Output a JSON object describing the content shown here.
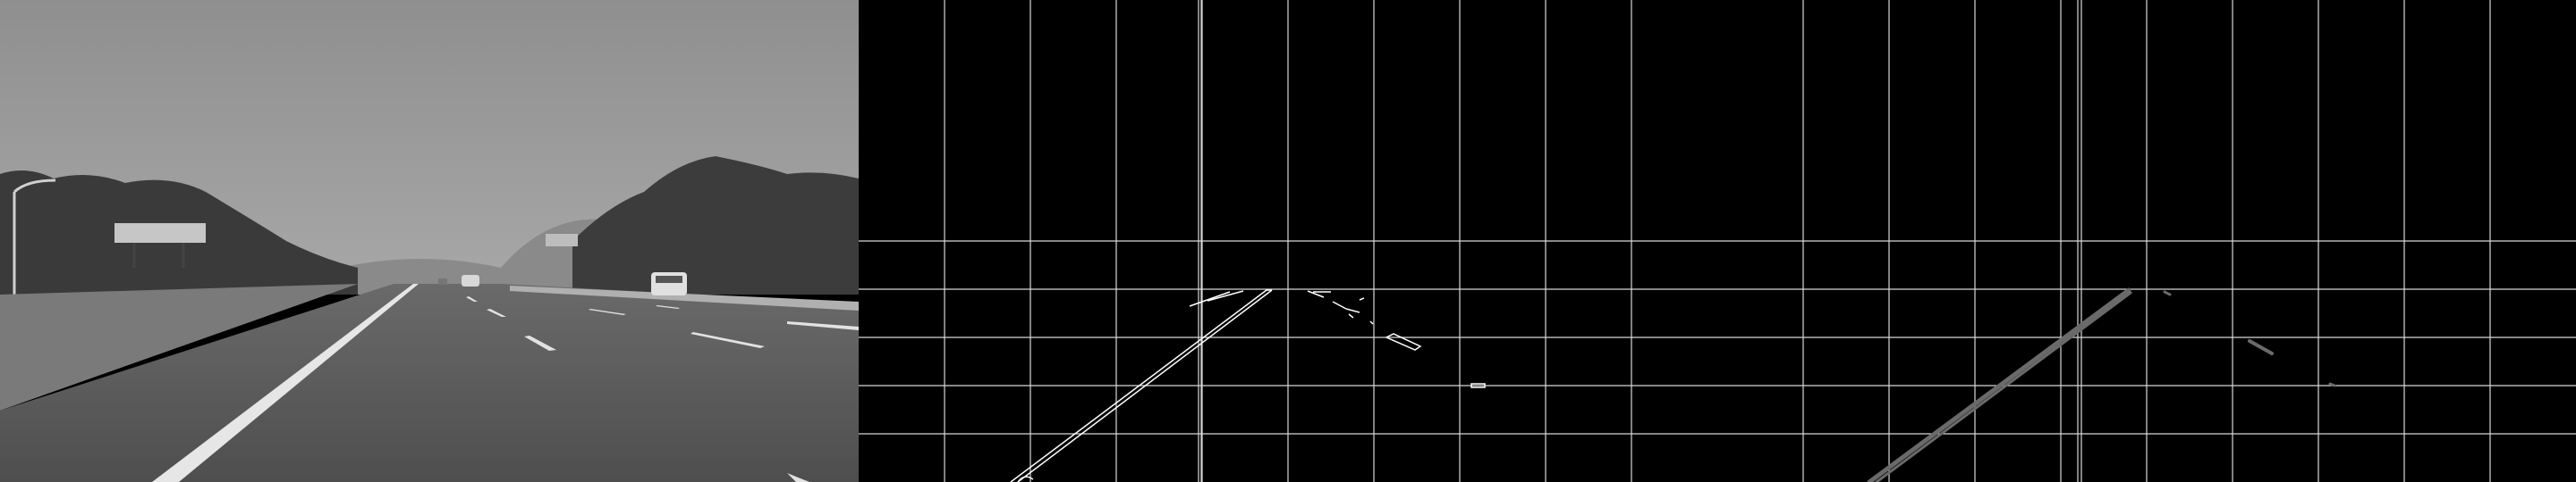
{
  "panels": [
    {
      "id": "grayscale-road",
      "kind": "image"
    },
    {
      "id": "canny-edges-grid",
      "kind": "image"
    },
    {
      "id": "hough-lines-grid",
      "kind": "image"
    }
  ],
  "colors": {
    "background": "#000000",
    "grid": "#d8d8d8",
    "edge": "#ffffff",
    "hough": "#6a6a6a",
    "sky": "#9a9a9a",
    "road": "#565656"
  }
}
